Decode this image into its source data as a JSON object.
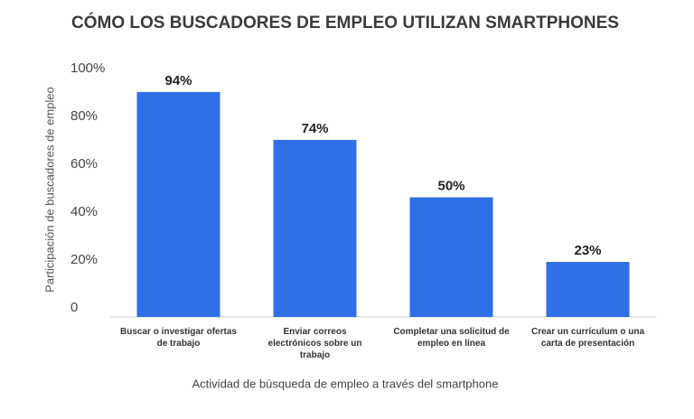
{
  "chart_data": {
    "type": "bar",
    "title": "CÓMO LOS BUSCADORES DE EMPLEO UTILIZAN SMARTPHONES",
    "x_label": "Actividad de búsqueda de empleo a través del smartphone",
    "y_label": "Participación de buscadores de empleo",
    "categories": [
      "Buscar o investigar ofertas de trabajo",
      "Enviar correos electrónicos sobre un trabajo",
      "Completar una solicitud de empleo en línea",
      "Crear un currículum o una carta de presentación"
    ],
    "values": [
      94,
      74,
      50,
      23
    ],
    "value_labels": [
      "94%",
      "74%",
      "50%",
      "23%"
    ],
    "color": "#2f6fe8",
    "ylim": [
      0,
      100
    ],
    "yticks": [
      0,
      {
        "value": 20,
        "label": "20%"
      },
      {
        "value": 40,
        "label": "40%"
      },
      {
        "value": 60,
        "label": "60%"
      },
      {
        "value": 80,
        "label": "80%"
      },
      {
        "value": 100,
        "label": "100%"
      }
    ]
  }
}
